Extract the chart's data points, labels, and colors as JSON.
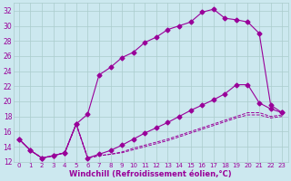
{
  "bg_color": "#cce8ef",
  "grid_color": "#aacccc",
  "line_color": "#990099",
  "xlabel": "Windchill (Refroidissement éolien,°C)",
  "xlim": [
    -0.5,
    23.5
  ],
  "ylim": [
    12,
    33
  ],
  "xticks": [
    0,
    1,
    2,
    3,
    4,
    5,
    6,
    7,
    8,
    9,
    10,
    11,
    12,
    13,
    14,
    15,
    16,
    17,
    18,
    19,
    20,
    21,
    22,
    23
  ],
  "yticks": [
    12,
    14,
    16,
    18,
    20,
    22,
    24,
    26,
    28,
    30,
    32
  ],
  "line1_x": [
    0,
    1,
    2,
    3,
    4,
    5,
    6,
    7,
    8,
    9,
    10,
    11,
    12,
    13,
    14,
    15,
    16,
    17,
    18,
    19,
    20,
    21,
    22,
    23
  ],
  "line1_y": [
    15.0,
    13.5,
    12.5,
    12.8,
    13.2,
    17.0,
    18.3,
    23.5,
    24.5,
    25.8,
    26.5,
    27.8,
    28.5,
    29.5,
    30.0,
    30.5,
    31.8,
    32.2,
    31.0,
    30.8,
    30.5,
    29.0,
    19.5,
    18.5
  ],
  "line2_x": [
    0,
    1,
    2,
    3,
    4,
    5,
    6,
    7,
    8,
    9,
    10,
    11,
    12,
    13,
    14,
    15,
    16,
    17,
    18,
    19,
    20,
    21,
    22,
    23
  ],
  "line2_y": [
    15.0,
    13.5,
    12.5,
    12.8,
    13.2,
    17.0,
    12.5,
    13.0,
    13.5,
    14.2,
    15.0,
    15.8,
    16.5,
    17.2,
    18.0,
    18.8,
    19.5,
    20.2,
    21.0,
    22.2,
    22.2,
    19.8,
    19.0,
    18.5
  ],
  "line3_x": [
    0,
    1,
    2,
    3,
    4,
    5,
    6,
    7,
    8,
    9,
    10,
    11,
    12,
    13,
    14,
    15,
    16,
    17,
    18,
    19,
    20,
    21,
    22,
    23
  ],
  "line3_y": [
    15.0,
    13.5,
    12.5,
    12.8,
    13.2,
    17.0,
    12.5,
    12.8,
    13.0,
    13.3,
    13.8,
    14.2,
    14.6,
    15.0,
    15.5,
    16.0,
    16.5,
    17.0,
    17.5,
    18.0,
    18.5,
    18.5,
    18.0,
    18.2
  ],
  "line4_x": [
    0,
    1,
    2,
    3,
    4,
    5,
    6,
    7,
    8,
    9,
    10,
    11,
    12,
    13,
    14,
    15,
    16,
    17,
    18,
    19,
    20,
    21,
    22,
    23
  ],
  "line4_y": [
    15.0,
    13.5,
    12.5,
    12.8,
    13.2,
    17.0,
    12.5,
    12.8,
    13.0,
    13.2,
    13.6,
    14.0,
    14.4,
    14.8,
    15.3,
    15.8,
    16.3,
    16.8,
    17.3,
    17.8,
    18.2,
    18.2,
    17.8,
    18.0
  ]
}
